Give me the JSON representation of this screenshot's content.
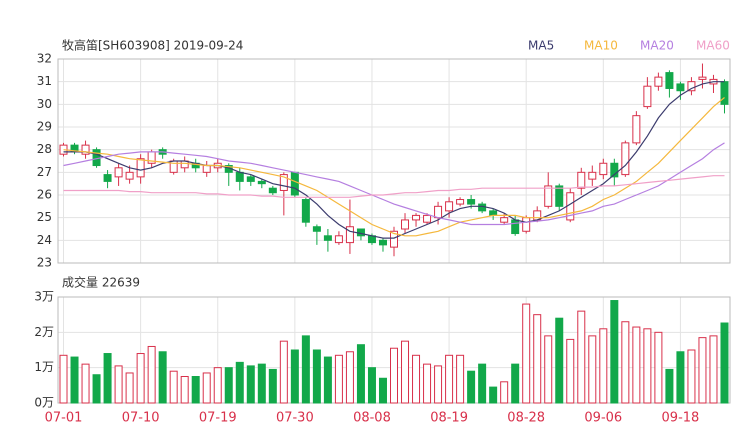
{
  "chart_data": [
    {
      "type": "candlestick",
      "title": "牧高笛[SH603908] 2019-09-24",
      "up_color": "#d8304a",
      "down_color": "#12a84a",
      "open": [
        27.8,
        28.2,
        27.8,
        28.0,
        26.9,
        26.8,
        26.7,
        26.8,
        27.4,
        28.0,
        27.0,
        27.2,
        27.4,
        27.0,
        27.2,
        27.3,
        27.0,
        26.8,
        26.6,
        26.3,
        26.2,
        27.0,
        25.8,
        24.6,
        24.2,
        23.9,
        23.9,
        24.5,
        24.2,
        24.0,
        23.7,
        24.5,
        24.9,
        24.8,
        25.0,
        25.3,
        25.6,
        25.8,
        25.6,
        25.3,
        24.8,
        24.9,
        24.4,
        24.9,
        25.5,
        26.4,
        24.9,
        26.3,
        26.7,
        26.9,
        27.4,
        26.9,
        28.3,
        29.9,
        30.8,
        31.4,
        30.9,
        30.6,
        31.1,
        30.9,
        31.0
      ],
      "close": [
        28.2,
        27.9,
        28.2,
        27.3,
        26.6,
        27.2,
        27.0,
        27.6,
        27.9,
        27.8,
        27.5,
        27.5,
        27.2,
        27.3,
        27.4,
        27.0,
        26.6,
        26.6,
        26.5,
        26.1,
        26.9,
        26.0,
        24.8,
        24.4,
        24.0,
        24.2,
        24.6,
        24.2,
        23.9,
        23.8,
        24.4,
        24.9,
        25.1,
        25.1,
        25.5,
        25.7,
        25.8,
        25.6,
        25.3,
        25.1,
        25.0,
        24.3,
        25.0,
        25.3,
        26.4,
        25.5,
        26.1,
        27.0,
        27.0,
        27.4,
        26.8,
        28.3,
        29.5,
        30.8,
        31.2,
        30.7,
        30.6,
        31.0,
        31.2,
        31.1,
        30.0
      ],
      "high": [
        28.3,
        28.3,
        28.4,
        28.1,
        27.1,
        27.4,
        27.3,
        27.8,
        28.0,
        28.1,
        27.6,
        27.7,
        27.6,
        27.5,
        27.6,
        27.4,
        27.2,
        26.9,
        26.7,
        26.4,
        27.0,
        27.0,
        25.9,
        24.7,
        24.5,
        24.4,
        25.8,
        24.5,
        24.3,
        24.1,
        24.6,
        25.2,
        25.2,
        25.2,
        25.7,
        25.9,
        25.9,
        26.0,
        25.7,
        25.4,
        25.2,
        25.1,
        25.1,
        25.5,
        27.0,
        26.5,
        26.3,
        27.2,
        27.3,
        27.6,
        27.6,
        28.4,
        29.7,
        31.2,
        31.4,
        31.5,
        31.0,
        31.2,
        31.8,
        31.3,
        31.1
      ],
      "low": [
        27.7,
        27.8,
        27.6,
        27.2,
        26.3,
        26.4,
        26.5,
        26.5,
        27.2,
        27.6,
        26.9,
        27.0,
        27.0,
        26.8,
        27.0,
        26.4,
        26.2,
        26.4,
        26.3,
        26.0,
        25.1,
        25.9,
        24.6,
        23.8,
        23.5,
        23.8,
        23.4,
        24.0,
        23.8,
        23.5,
        23.3,
        24.3,
        24.6,
        24.7,
        24.7,
        25.0,
        25.5,
        25.4,
        25.2,
        24.9,
        24.7,
        24.2,
        24.3,
        24.8,
        25.4,
        25.3,
        24.8,
        26.0,
        26.4,
        26.7,
        26.4,
        26.8,
        28.2,
        29.8,
        30.6,
        30.3,
        30.2,
        30.4,
        30.7,
        30.5,
        29.6
      ],
      "series": [
        {
          "name": "MA5",
          "color": "#3c3c6e",
          "values": [
            27.9,
            27.9,
            27.9,
            27.8,
            27.6,
            27.4,
            27.2,
            27.1,
            27.2,
            27.4,
            27.5,
            27.5,
            27.4,
            27.3,
            27.3,
            27.2,
            27.0,
            26.9,
            26.7,
            26.5,
            26.4,
            26.3,
            26.0,
            25.6,
            25.1,
            24.7,
            24.4,
            24.3,
            24.2,
            24.1,
            24.1,
            24.3,
            24.5,
            24.7,
            24.9,
            25.2,
            25.4,
            25.5,
            25.5,
            25.4,
            25.2,
            24.9,
            24.8,
            24.9,
            25.1,
            25.3,
            25.6,
            25.9,
            26.2,
            26.5,
            26.9,
            27.3,
            27.9,
            28.6,
            29.4,
            30.0,
            30.4,
            30.7,
            30.9,
            31.0,
            31.0
          ]
        },
        {
          "name": "MA10",
          "color": "#f5b83d",
          "values": [
            28.0,
            27.95,
            27.9,
            27.85,
            27.8,
            27.7,
            27.6,
            27.55,
            27.5,
            27.45,
            27.4,
            27.4,
            27.35,
            27.3,
            27.3,
            27.25,
            27.2,
            27.1,
            27.0,
            26.9,
            26.8,
            26.6,
            26.4,
            26.2,
            25.9,
            25.6,
            25.3,
            25.0,
            24.7,
            24.5,
            24.3,
            24.2,
            24.2,
            24.3,
            24.4,
            24.6,
            24.8,
            24.9,
            25.0,
            25.1,
            25.1,
            25.1,
            25.0,
            25.0,
            25.0,
            25.1,
            25.2,
            25.3,
            25.5,
            25.8,
            26.0,
            26.3,
            26.6,
            27.0,
            27.4,
            27.9,
            28.4,
            28.9,
            29.4,
            29.9,
            30.3
          ]
        },
        {
          "name": "MA20",
          "color": "#b57fe0",
          "values": [
            27.3,
            27.4,
            27.5,
            27.6,
            27.7,
            27.8,
            27.85,
            27.9,
            27.9,
            27.9,
            27.85,
            27.8,
            27.75,
            27.7,
            27.6,
            27.5,
            27.45,
            27.4,
            27.3,
            27.2,
            27.1,
            27.0,
            26.9,
            26.8,
            26.7,
            26.6,
            26.4,
            26.2,
            26.0,
            25.8,
            25.6,
            25.45,
            25.3,
            25.15,
            25.0,
            24.9,
            24.8,
            24.7,
            24.7,
            24.7,
            24.7,
            24.75,
            24.8,
            24.85,
            24.9,
            25.0,
            25.1,
            25.2,
            25.3,
            25.5,
            25.6,
            25.8,
            26.0,
            26.2,
            26.4,
            26.7,
            27.0,
            27.3,
            27.6,
            28.0,
            28.3
          ]
        },
        {
          "name": "MA60",
          "color": "#f0a0c8",
          "values": [
            26.2,
            26.2,
            26.2,
            26.2,
            26.2,
            26.2,
            26.15,
            26.15,
            26.1,
            26.1,
            26.1,
            26.1,
            26.1,
            26.05,
            26.05,
            26.0,
            26.0,
            26.0,
            25.95,
            25.95,
            25.9,
            25.9,
            25.9,
            25.9,
            25.9,
            25.9,
            25.9,
            25.95,
            26.0,
            26.0,
            26.05,
            26.1,
            26.1,
            26.15,
            26.2,
            26.2,
            26.25,
            26.25,
            26.3,
            26.3,
            26.3,
            26.3,
            26.3,
            26.3,
            26.3,
            26.3,
            26.3,
            26.35,
            26.35,
            26.4,
            26.4,
            26.45,
            26.5,
            26.55,
            26.6,
            26.65,
            26.7,
            26.75,
            26.8,
            26.85,
            26.85
          ]
        }
      ],
      "ylim": [
        23,
        32
      ],
      "yticks": [
        23,
        24,
        25,
        26,
        27,
        28,
        29,
        30,
        31,
        32
      ],
      "grid": true
    },
    {
      "type": "bar",
      "title": "成交量 22639",
      "categories": [
        "07-01",
        null,
        null,
        null,
        null,
        null,
        null,
        "07-10",
        null,
        null,
        null,
        null,
        null,
        null,
        "07-19",
        null,
        null,
        null,
        null,
        null,
        null,
        "07-30",
        null,
        null,
        null,
        null,
        null,
        null,
        "08-08",
        null,
        null,
        null,
        null,
        null,
        null,
        "08-19",
        null,
        null,
        null,
        null,
        null,
        null,
        "08-28",
        null,
        null,
        null,
        null,
        null,
        null,
        "09-06",
        null,
        null,
        null,
        null,
        null,
        null,
        "09-18",
        null,
        null,
        null,
        null
      ],
      "values": [
        1.35,
        1.3,
        1.1,
        0.8,
        1.4,
        1.05,
        0.85,
        1.4,
        1.6,
        1.45,
        0.9,
        0.75,
        0.75,
        0.85,
        1.0,
        1.0,
        1.15,
        1.05,
        1.1,
        0.95,
        1.75,
        1.5,
        1.9,
        1.5,
        1.3,
        1.35,
        1.45,
        1.65,
        1.0,
        0.7,
        1.55,
        1.75,
        1.35,
        1.1,
        1.05,
        1.35,
        1.35,
        0.9,
        1.1,
        0.45,
        0.6,
        1.1,
        2.8,
        2.5,
        1.9,
        2.4,
        1.8,
        2.6,
        1.9,
        2.1,
        2.9,
        2.3,
        2.15,
        2.1,
        2.0,
        0.95,
        1.45,
        1.5,
        1.85,
        1.9,
        2.2639
      ],
      "ylim": [
        0,
        3
      ],
      "yticks": [
        {
          "value": 0,
          "label": "0万"
        },
        {
          "value": 1,
          "label": "1万"
        },
        {
          "value": 2,
          "label": "2万"
        },
        {
          "value": 3,
          "label": "3万"
        }
      ],
      "x_label_color": "#d8304a"
    }
  ]
}
